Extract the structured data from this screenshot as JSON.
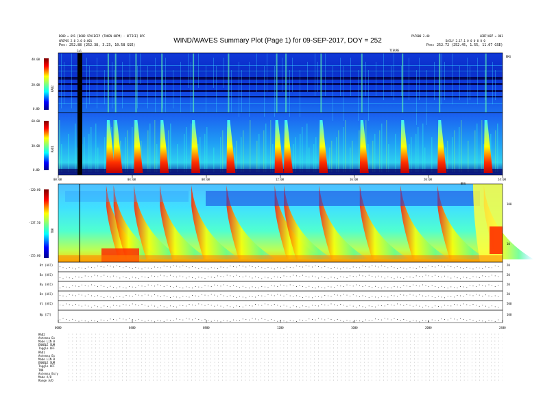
{
  "header": {
    "left_line1": "DOOD = 691 [DOOD SPACECIP (TOKEN 88PM) - OFFICE] BPC",
    "left_line2": "ARGPOS 2.0 2.0 0.001",
    "left_line3": "Pos:  252.88 (252.38, 3.23, 10.58 GSE)",
    "right_top1": "PAT000 2.40",
    "right_top2": "LDB7/007 = 801",
    "right_line2": "DAILY 2.17.1 0 0 0 0 0 0",
    "right_line3": "Pos:  252.72 (252.45, 1.55, 11.07 GSE)",
    "title": "WIND/WAVES Summary Plot (Page 1) for 09-SEP-2017, DOY = 252",
    "top_marker_left": "Cal",
    "top_marker_mid": "TIEURE",
    "top_marker_right": "BKG"
  },
  "rad2": {
    "label": "RAD2",
    "ticks": [
      "40.00",
      "20.00",
      "0.00"
    ]
  },
  "rad1": {
    "label": "RAD1",
    "ticks": [
      "60.00",
      "30.00",
      "0.00"
    ]
  },
  "tnr": {
    "label": "TNR",
    "ticks": [
      "-120.00",
      "-137.50",
      "-155.00"
    ],
    "right_ticks": [
      "100",
      "10"
    ],
    "right_label": "BKG"
  },
  "time_ticks": [
    "00:00",
    "04:00",
    "08:00",
    "12:00",
    "16:00",
    "20:00",
    "24:00"
  ],
  "time_ticks_small": [
    "0000",
    "0400",
    "0800",
    "1200",
    "1600",
    "2000",
    "2400"
  ],
  "mfi": {
    "rows": [
      {
        "label": "Bt (ACC)",
        "right": "20"
      },
      {
        "label": "Bx (ACC)",
        "right": "20"
      },
      {
        "label": "By (ACC)",
        "right": "20"
      },
      {
        "label": "Bz (ACC)",
        "right": "20"
      },
      {
        "label": "Vt (ACC)",
        "right": "500"
      },
      {
        "label": "Np (IT)",
        "right": "100"
      }
    ]
  },
  "footer": {
    "lines": [
      "RAD2",
      "Antenna  Ex",
      "Mode  LIN B",
      "ENABLE  SUM",
      "Toggle  OFF",
      "RAD1",
      "Antenna  Ex",
      "Mode  LIN B",
      "ENABLE  SUM",
      "Toggle  OFF",
      "TNR",
      "Antenna  Ex/y",
      "Mode  A/D",
      "Range  A/D"
    ]
  },
  "chart_data": {
    "type": "heatmap",
    "title": "WIND/WAVES Summary Plot (Page 1) for 09-SEP-2017, DOY = 252",
    "x_range_hours": [
      0,
      24
    ],
    "panels": [
      {
        "name": "RAD2",
        "y_range": [
          0,
          40
        ],
        "colorscale": "jet"
      },
      {
        "name": "RAD1",
        "y_range": [
          0,
          60
        ],
        "colorscale": "jet"
      },
      {
        "name": "TNR",
        "y_range": [
          -155,
          -120
        ],
        "colorscale": "jet"
      }
    ],
    "bursts_hours": [
      2.7,
      3.1,
      4.2,
      5.6,
      7.3,
      9.2,
      11.8,
      12.3,
      14.2,
      16.4,
      18.6,
      20.6,
      23.1
    ]
  }
}
